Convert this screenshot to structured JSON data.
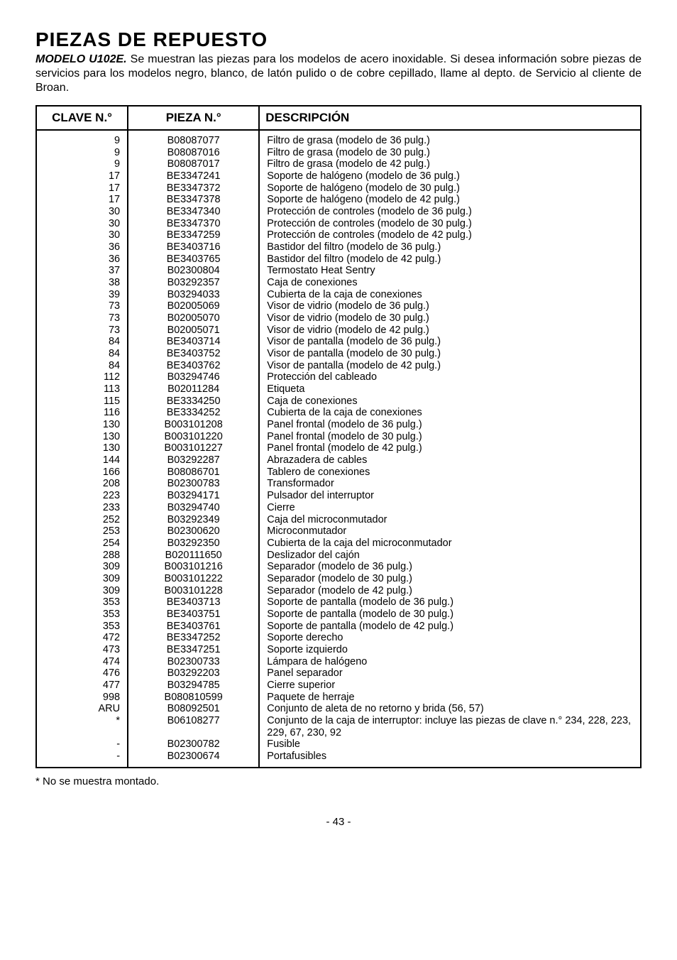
{
  "title": "PIEZAS DE REPUESTO",
  "model_label": "MODELO U102E.",
  "intro_rest": " Se muestran las piezas para los modelos de acero inoxidable. Si desea información sobre piezas de servicios para los modelos negro, blanco, de latón pulido o de cobre cepillado, llame al depto. de Servicio al cliente de Broan.",
  "headers": {
    "clave": "CLAVE N.°",
    "pieza": "PIEZA N.°",
    "desc": "DESCRIPCIÓN"
  },
  "rows": [
    {
      "c": "9",
      "p": "B08087077",
      "d": "Filtro de grasa (modelo de 36 pulg.)"
    },
    {
      "c": "9",
      "p": "B08087016",
      "d": "Filtro de grasa (modelo de 30 pulg.)"
    },
    {
      "c": "9",
      "p": "B08087017",
      "d": "Filtro de grasa (modelo de 42 pulg.)"
    },
    {
      "c": "17",
      "p": "BE3347241",
      "d": "Soporte de halógeno (modelo de 36 pulg.)"
    },
    {
      "c": "17",
      "p": "BE3347372",
      "d": "Soporte de halógeno (modelo de 30 pulg.)"
    },
    {
      "c": "17",
      "p": "BE3347378",
      "d": "Soporte de halógeno (modelo de 42 pulg.)"
    },
    {
      "c": "30",
      "p": "BE3347340",
      "d": "Protección de controles (modelo de 36 pulg.)"
    },
    {
      "c": "30",
      "p": "BE3347370",
      "d": "Protección de controles (modelo de 30 pulg.)"
    },
    {
      "c": "30",
      "p": "BE3347259",
      "d": "Protección de controles (modelo de 42 pulg.)"
    },
    {
      "c": "36",
      "p": "BE3403716",
      "d": "Bastidor del filtro (modelo de 36 pulg.)"
    },
    {
      "c": "36",
      "p": "BE3403765",
      "d": "Bastidor del filtro (modelo de 42 pulg.)"
    },
    {
      "c": "37",
      "p": "B02300804",
      "d": "Termostato Heat Sentry"
    },
    {
      "c": "38",
      "p": "B03292357",
      "d": "Caja de conexiones"
    },
    {
      "c": "39",
      "p": "B03294033",
      "d": "Cubierta de la caja de conexiones"
    },
    {
      "c": "73",
      "p": "B02005069",
      "d": "Visor de vidrio (modelo de 36 pulg.)"
    },
    {
      "c": "73",
      "p": "B02005070",
      "d": "Visor de vidrio (modelo de 30 pulg.)"
    },
    {
      "c": "73",
      "p": "B02005071",
      "d": "Visor de vidrio (modelo de 42 pulg.)"
    },
    {
      "c": "84",
      "p": "BE3403714",
      "d": "Visor de pantalla (modelo de 36 pulg.)"
    },
    {
      "c": "84",
      "p": "BE3403752",
      "d": "Visor de pantalla (modelo de 30 pulg.)"
    },
    {
      "c": "84",
      "p": "BE3403762",
      "d": "Visor de pantalla (modelo de 42 pulg.)"
    },
    {
      "c": "112",
      "p": "B03294746",
      "d": "Protección del cableado"
    },
    {
      "c": "113",
      "p": "B02011284",
      "d": "Etiqueta"
    },
    {
      "c": "115",
      "p": "BE3334250",
      "d": "Caja de conexiones"
    },
    {
      "c": "116",
      "p": "BE3334252",
      "d": "Cubierta de la caja de conexiones"
    },
    {
      "c": "130",
      "p": "B003101208",
      "d": "Panel frontal (modelo de 36 pulg.)"
    },
    {
      "c": "130",
      "p": "B003101220",
      "d": "Panel frontal (modelo de 30 pulg.)"
    },
    {
      "c": "130",
      "p": "B003101227",
      "d": "Panel frontal (modelo de 42 pulg.)"
    },
    {
      "c": "144",
      "p": "B03292287",
      "d": "Abrazadera de cables"
    },
    {
      "c": "166",
      "p": "B08086701",
      "d": "Tablero de conexiones"
    },
    {
      "c": "208",
      "p": "B02300783",
      "d": "Transformador"
    },
    {
      "c": "223",
      "p": "B03294171",
      "d": "Pulsador del interruptor"
    },
    {
      "c": "233",
      "p": "B03294740",
      "d": "Cierre"
    },
    {
      "c": "252",
      "p": "B03292349",
      "d": "Caja del microconmutador"
    },
    {
      "c": "253",
      "p": "B02300620",
      "d": "Microconmutador"
    },
    {
      "c": "254",
      "p": "B03292350",
      "d": "Cubierta de la caja del microconmutador"
    },
    {
      "c": "288",
      "p": "B020111650",
      "d": "Deslizador del cajón"
    },
    {
      "c": "309",
      "p": "B003101216",
      "d": "Separador (modelo de 36 pulg.)"
    },
    {
      "c": "309",
      "p": "B003101222",
      "d": "Separador (modelo de 30 pulg.)"
    },
    {
      "c": "309",
      "p": "B003101228",
      "d": "Separador (modelo de 42 pulg.)"
    },
    {
      "c": "353",
      "p": "BE3403713",
      "d": "Soporte de pantalla (modelo de 36 pulg.)"
    },
    {
      "c": "353",
      "p": "BE3403751",
      "d": "Soporte de pantalla (modelo de 30 pulg.)"
    },
    {
      "c": "353",
      "p": "BE3403761",
      "d": "Soporte de pantalla (modelo de 42 pulg.)"
    },
    {
      "c": "472",
      "p": "BE3347252",
      "d": "Soporte derecho"
    },
    {
      "c": "473",
      "p": "BE3347251",
      "d": "Soporte izquierdo"
    },
    {
      "c": "474",
      "p": "B02300733",
      "d": "Lámpara de halógeno"
    },
    {
      "c": "476",
      "p": "B03292203",
      "d": "Panel separador"
    },
    {
      "c": "477",
      "p": "B03294785",
      "d": "Cierre superior"
    },
    {
      "c": "998",
      "p": "B080810599",
      "d": "Paquete de herraje"
    },
    {
      "c": "ARU",
      "p": "B08092501",
      "d": "Conjunto de aleta de no retorno y brida (56, 57)"
    },
    {
      "c": "*",
      "p": "B06108277",
      "d": "Conjunto de la caja de interruptor: incluye las piezas de clave n.° 234, 228, 223, 229, 67, 230, 92"
    },
    {
      "c": "-",
      "p": "B02300782",
      "d": "Fusible"
    },
    {
      "c": "-",
      "p": "B02300674",
      "d": "Portafusibles"
    }
  ],
  "footnote": "* No se muestra montado.",
  "page_number": "- 43 -"
}
